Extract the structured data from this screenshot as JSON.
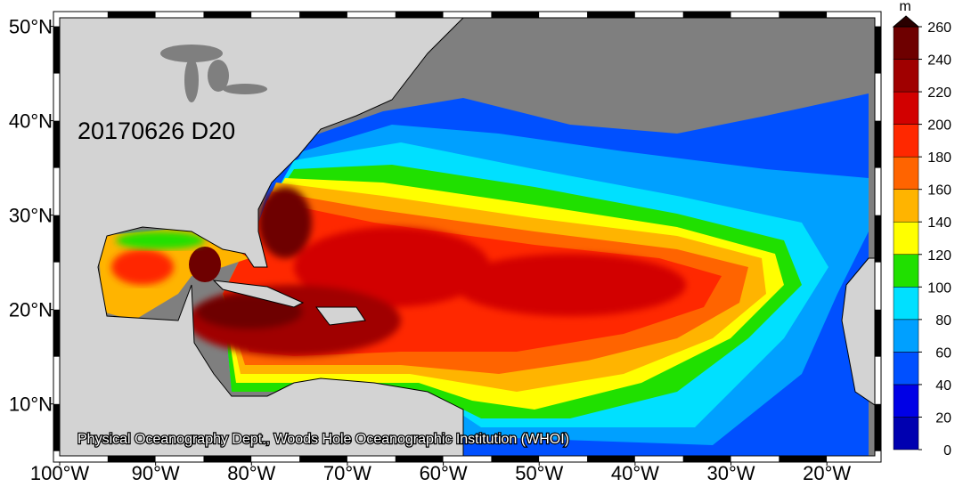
{
  "map": {
    "date_label": "20170626 D20",
    "credit": "Physical Oceanography Dept., Woods Hole Oceanographic Institution (WHOI)",
    "xlim": [
      -100,
      -15
    ],
    "ylim": [
      4.5,
      50.9
    ],
    "xticks": [
      {
        "value": -100,
        "label": "100°W"
      },
      {
        "value": -90,
        "label": "90°W"
      },
      {
        "value": -80,
        "label": "80°W"
      },
      {
        "value": -70,
        "label": "70°W"
      },
      {
        "value": -60,
        "label": "60°W"
      },
      {
        "value": -50,
        "label": "50°W"
      },
      {
        "value": -40,
        "label": "40°W"
      },
      {
        "value": -30,
        "label": "30°W"
      },
      {
        "value": -20,
        "label": "20°W"
      }
    ],
    "yticks": [
      {
        "value": 10,
        "label": "10°N"
      },
      {
        "value": 20,
        "label": "20°N"
      },
      {
        "value": 30,
        "label": "30°N"
      },
      {
        "value": 40,
        "label": "40°N"
      },
      {
        "value": 50,
        "label": "50°N"
      }
    ],
    "colorbar": {
      "unit": "m",
      "ticks": [
        0,
        20,
        40,
        60,
        80,
        100,
        120,
        140,
        160,
        180,
        200,
        220,
        240,
        260
      ],
      "colors": [
        "#0000b0",
        "#0000e6",
        "#0050ff",
        "#00a0ff",
        "#00e0ff",
        "#20e000",
        "#ffff00",
        "#ffb400",
        "#ff6400",
        "#ff2800",
        "#d20000",
        "#a00000",
        "#6e0000"
      ],
      "over_color": "#2a0000"
    }
  }
}
